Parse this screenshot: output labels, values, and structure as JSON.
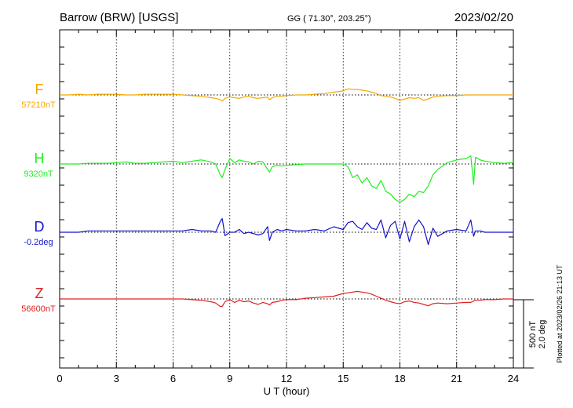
{
  "header": {
    "station": "Barrow (BRW)  [USGS]",
    "coords": "GG ( 71.30°, 203.25°)",
    "date": "2023/02/20"
  },
  "footer_note": "Plotted at 2023/02/26 21:13 UT",
  "scale_bar": {
    "line1": "500 nT",
    "line2": "2.0 deg"
  },
  "chart_data": {
    "type": "line",
    "xlabel": "U T (hour)",
    "xlim": [
      0,
      24
    ],
    "x_ticks": [
      "0",
      "3",
      "6",
      "9",
      "12",
      "15",
      "18",
      "21",
      "24"
    ],
    "grid": true,
    "x": [
      0,
      0.5,
      1,
      1.5,
      2,
      2.5,
      3,
      3.5,
      4,
      4.5,
      5,
      5.5,
      6,
      6.5,
      7,
      7.5,
      8,
      8.25,
      8.5,
      8.6,
      8.75,
      9,
      9.25,
      9.5,
      9.75,
      10,
      10.25,
      10.5,
      10.75,
      11,
      11.1,
      11.25,
      11.5,
      11.75,
      12,
      12.5,
      13,
      13.5,
      14,
      14.5,
      15,
      15.25,
      15.5,
      15.75,
      16,
      16.25,
      16.5,
      16.75,
      17,
      17.25,
      17.5,
      17.75,
      18,
      18.25,
      18.5,
      18.75,
      19,
      19.25,
      19.5,
      19.75,
      20,
      20.5,
      21,
      21.5,
      21.75,
      21.9,
      22,
      22.25,
      22.5,
      23,
      23.5,
      24
    ],
    "series": [
      {
        "name": "F",
        "baseline_label": "57210nT",
        "units": "nT",
        "color": "#f5a800",
        "values": [
          0,
          0,
          5,
          0,
          5,
          5,
          5,
          0,
          0,
          5,
          5,
          5,
          5,
          0,
          -5,
          -10,
          -20,
          -25,
          -35,
          -45,
          -25,
          -15,
          -20,
          -25,
          -15,
          -10,
          -20,
          -25,
          -20,
          -15,
          -35,
          -20,
          -10,
          -10,
          -5,
          0,
          0,
          5,
          10,
          20,
          30,
          45,
          40,
          40,
          35,
          30,
          20,
          10,
          -5,
          -10,
          -15,
          -25,
          -40,
          -30,
          -20,
          -25,
          -20,
          -40,
          -30,
          -15,
          -10,
          -5,
          -5,
          0,
          0,
          0,
          0,
          0,
          0,
          0,
          0,
          0
        ]
      },
      {
        "name": "H",
        "baseline_label": "9320nT",
        "units": "nT",
        "color": "#22ee22",
        "values": [
          0,
          0,
          0,
          5,
          5,
          5,
          10,
          15,
          5,
          5,
          10,
          15,
          20,
          10,
          20,
          30,
          15,
          0,
          -80,
          -100,
          -40,
          40,
          10,
          30,
          20,
          15,
          0,
          20,
          15,
          -40,
          -60,
          -20,
          -10,
          -15,
          -10,
          -5,
          0,
          0,
          0,
          0,
          0,
          -20,
          -100,
          -80,
          -140,
          -100,
          -160,
          -180,
          -120,
          -200,
          -220,
          -260,
          -280,
          -260,
          -220,
          -240,
          -200,
          -210,
          -160,
          -80,
          -40,
          10,
          30,
          40,
          60,
          -150,
          50,
          30,
          20,
          10,
          5,
          10
        ]
      },
      {
        "name": "D",
        "baseline_label": "-0.2deg",
        "units": "deg",
        "color": "#1414cc",
        "values": [
          0,
          0,
          0,
          0.04,
          0.04,
          0.04,
          0.04,
          0.04,
          0.04,
          0.04,
          0.04,
          0.04,
          0.04,
          0.04,
          0.08,
          0.04,
          0.04,
          0,
          0.32,
          0.4,
          -0.1,
          0,
          0,
          0.08,
          -0.04,
          0,
          -0.04,
          -0.08,
          -0.04,
          0.16,
          -0.24,
          0,
          0.08,
          0.04,
          0.08,
          0.04,
          0.04,
          0.08,
          0.04,
          0.16,
          0.08,
          0.28,
          0.32,
          0.16,
          0.08,
          0.28,
          0.12,
          0.08,
          0.36,
          -0.16,
          0.2,
          0.32,
          -0.2,
          0.32,
          -0.28,
          0.16,
          0.36,
          0.16,
          -0.36,
          0.12,
          -0.12,
          0.04,
          0.08,
          0.04,
          0.36,
          -0.12,
          0.04,
          0.04,
          0,
          0,
          0,
          0
        ]
      },
      {
        "name": "Z",
        "baseline_label": "56600nT",
        "units": "nT",
        "color": "#e02020",
        "values": [
          0,
          0,
          0,
          0,
          0,
          0,
          0,
          0,
          0,
          0,
          0,
          0,
          0,
          0,
          -5,
          -10,
          -20,
          -30,
          -55,
          -55,
          -20,
          -5,
          -25,
          -10,
          -20,
          -15,
          -30,
          -40,
          -25,
          -35,
          -45,
          -25,
          -20,
          -10,
          -5,
          -5,
          5,
          10,
          15,
          20,
          40,
          45,
          50,
          55,
          50,
          45,
          35,
          20,
          5,
          -10,
          -20,
          -30,
          -35,
          -20,
          -15,
          -25,
          -30,
          -40,
          -50,
          -35,
          -30,
          -35,
          -30,
          -25,
          -25,
          -15,
          -10,
          -10,
          -5,
          -5,
          0,
          0
        ]
      }
    ],
    "scale_bar_values": {
      "nT": 500,
      "deg": 2.0
    }
  }
}
